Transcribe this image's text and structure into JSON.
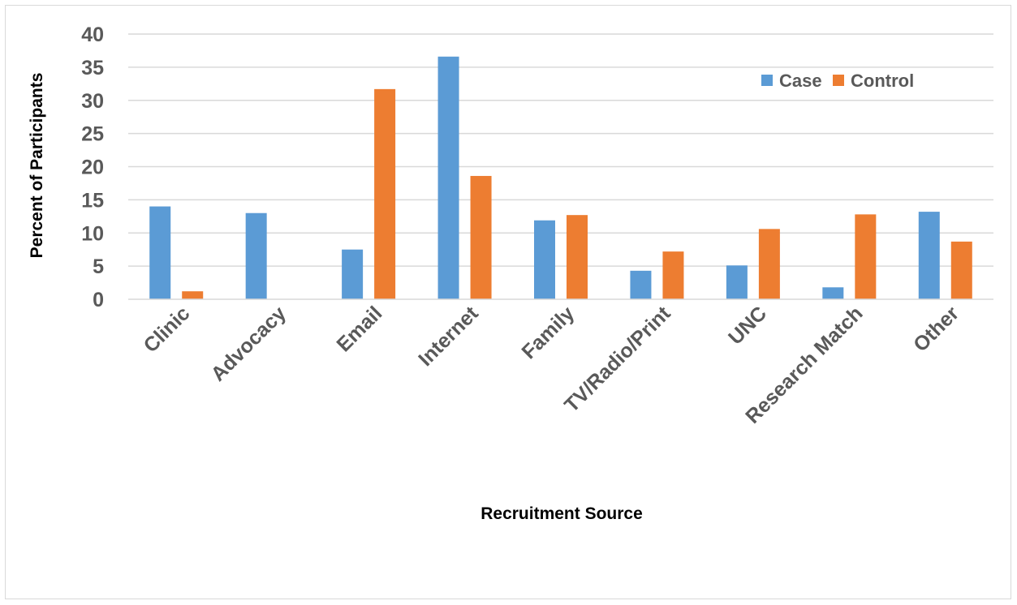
{
  "chart_data": {
    "type": "bar",
    "title": "",
    "xlabel": "Recruitment Source",
    "ylabel": "Percent of Participants",
    "ylim": [
      0,
      40
    ],
    "yticks": [
      0,
      5,
      10,
      15,
      20,
      25,
      30,
      35,
      40
    ],
    "grid": true,
    "legend_position": "top-right",
    "categories": [
      "Clinic",
      "Advocacy",
      "Email",
      "Internet",
      "Family",
      "TV/Radio/Print",
      "UNC",
      "Research Match",
      "Other"
    ],
    "series": [
      {
        "name": "Case",
        "color": "#5b9bd5",
        "values": [
          14.0,
          13.0,
          7.5,
          36.6,
          11.9,
          4.3,
          5.1,
          1.8,
          13.2
        ]
      },
      {
        "name": "Control",
        "color": "#ed7d31",
        "values": [
          1.2,
          0,
          31.7,
          18.6,
          12.7,
          7.2,
          10.6,
          12.8,
          8.7
        ]
      }
    ]
  }
}
